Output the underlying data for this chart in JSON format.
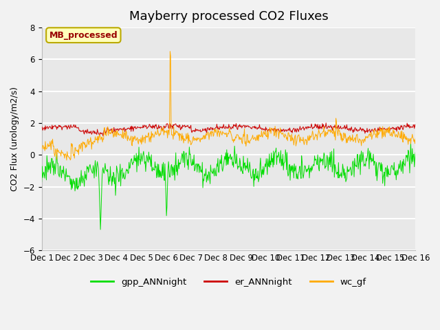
{
  "title": "Mayberry processed CO2 Fluxes",
  "ylabel": "CO2 Flux (urology/m2/s)",
  "ylim": [
    -6,
    8
  ],
  "yticks": [
    -6,
    -4,
    -2,
    0,
    2,
    4,
    6,
    8
  ],
  "n_points": 720,
  "colors": {
    "gpp": "#00dd00",
    "er": "#cc0000",
    "wc": "#ffaa00"
  },
  "legend_labels": [
    "gpp_ANNnight",
    "er_ANNnight",
    "wc_gf"
  ],
  "annotation_text": "MB_processed",
  "annotation_color": "#990000",
  "annotation_bg": "#ffffbb",
  "annotation_border": "#bbaa00",
  "plot_bg_color": "#e8e8e8",
  "fig_bg_color": "#f2f2f2",
  "grid_color": "#ffffff",
  "title_fontsize": 13,
  "label_fontsize": 9,
  "tick_fontsize": 8.5
}
